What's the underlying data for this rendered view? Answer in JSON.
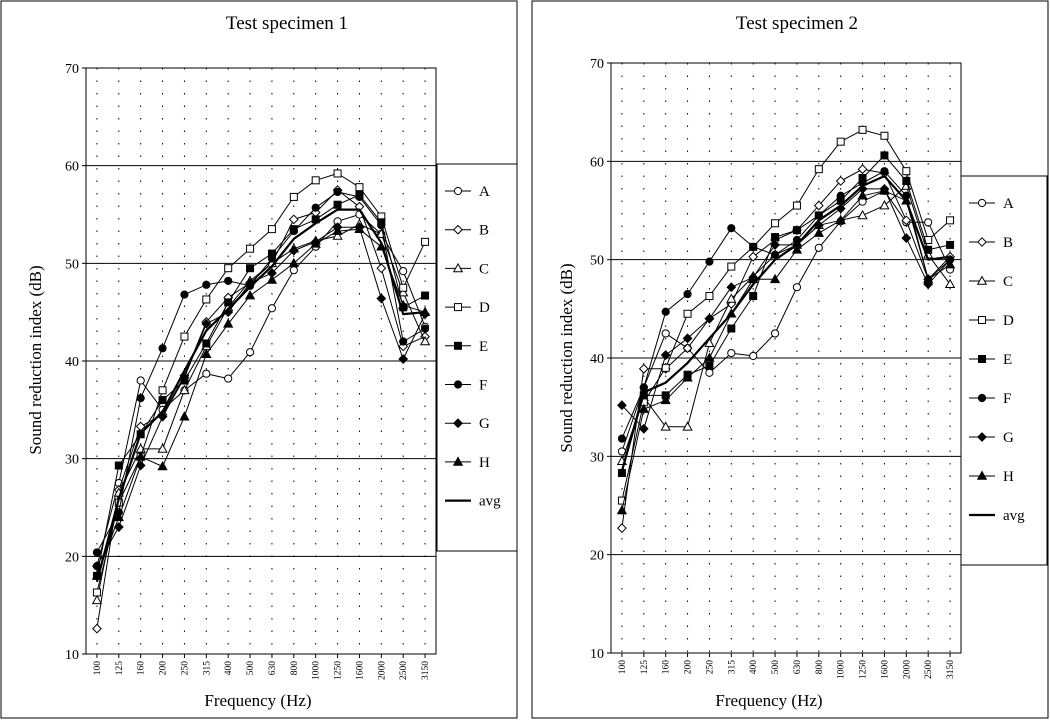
{
  "charts": [
    {
      "type": "line",
      "title": "Test specimen 1",
      "xlabel": "Frequency (Hz)",
      "ylabel": "Sound reduction index (dB)",
      "ylim": [
        10,
        70
      ],
      "yticks": [
        10,
        20,
        30,
        40,
        50,
        60,
        70
      ],
      "grid": "horizontal solid every 10 dB, vertical dotted at each band",
      "legend_position": "right",
      "categories": [
        "100",
        "125",
        "160",
        "200",
        "250",
        "315",
        "400",
        "500",
        "630",
        "800",
        "1000",
        "1250",
        "1600",
        "2000",
        "2500",
        "3150"
      ],
      "series": [
        {
          "name": "A",
          "marker": "circle-open",
          "values": [
            19.0,
            27.5,
            38.0,
            35.0,
            37.0,
            38.7,
            38.2,
            40.9,
            45.4,
            49.3,
            51.7,
            54.3,
            55.0,
            53.0,
            49.2,
            43.5
          ]
        },
        {
          "name": "B",
          "marker": "diamond-open",
          "values": [
            12.6,
            26.8,
            33.3,
            34.5,
            38.5,
            44.0,
            46.5,
            48.0,
            50.0,
            54.5,
            55.2,
            57.5,
            55.8,
            49.5,
            41.5,
            42.5
          ]
        },
        {
          "name": "C",
          "marker": "triangle-open",
          "values": [
            15.5,
            26.5,
            31.0,
            31.0,
            37.0,
            41.5,
            45.5,
            48.2,
            50.0,
            51.5,
            52.3,
            52.8,
            54.0,
            53.0,
            47.0,
            42.0
          ]
        },
        {
          "name": "D",
          "marker": "square-open",
          "values": [
            16.3,
            25.5,
            30.2,
            37.0,
            42.5,
            46.3,
            49.5,
            51.5,
            53.5,
            56.8,
            58.5,
            59.2,
            57.8,
            54.8,
            47.5,
            52.2
          ]
        },
        {
          "name": "E",
          "marker": "square-filled",
          "values": [
            18.0,
            29.3,
            32.5,
            36.0,
            38.0,
            41.8,
            46.0,
            49.5,
            51.0,
            53.5,
            54.5,
            56.0,
            57.0,
            54.2,
            45.5,
            46.7
          ]
        },
        {
          "name": "F",
          "marker": "circle-filled",
          "values": [
            20.4,
            24.5,
            36.2,
            41.3,
            46.8,
            47.8,
            48.2,
            47.7,
            50.5,
            53.3,
            55.7,
            57.3,
            56.8,
            53.9,
            42.0,
            43.3
          ]
        },
        {
          "name": "G",
          "marker": "diamond-filled",
          "values": [
            19.0,
            23.0,
            29.3,
            34.3,
            38.3,
            43.8,
            45.0,
            48.0,
            49.0,
            51.3,
            52.2,
            53.7,
            53.7,
            46.4,
            40.2,
            44.8
          ]
        },
        {
          "name": "H",
          "marker": "triangle-filled",
          "values": [
            18.0,
            24.0,
            30.2,
            29.2,
            34.3,
            40.7,
            43.8,
            46.7,
            48.3,
            50.0,
            52.0,
            53.3,
            53.5,
            51.7,
            45.7,
            45.0
          ]
        },
        {
          "name": "avg",
          "marker": "none",
          "values": [
            17.4,
            25.9,
            32.6,
            34.8,
            39.0,
            43.1,
            45.3,
            47.6,
            49.7,
            52.5,
            54.1,
            55.5,
            55.5,
            52.1,
            44.8,
            45.0
          ]
        }
      ]
    },
    {
      "type": "line",
      "title": "Test specimen 2",
      "xlabel": "Frequency (Hz)",
      "ylabel": "Sound reduction index (dB)",
      "ylim": [
        10,
        70
      ],
      "yticks": [
        10,
        20,
        30,
        40,
        50,
        60,
        70
      ],
      "grid": "horizontal solid every 10 dB, vertical dotted at each band",
      "legend_position": "right",
      "categories": [
        "100",
        "125",
        "160",
        "200",
        "250",
        "315",
        "400",
        "500",
        "630",
        "800",
        "1000",
        "1250",
        "1600",
        "2000",
        "2500",
        "3150"
      ],
      "series": [
        {
          "name": "A",
          "marker": "circle-open",
          "values": [
            30.5,
            37.0,
            42.5,
            41.0,
            38.5,
            40.5,
            40.2,
            42.5,
            47.2,
            51.2,
            53.9,
            55.9,
            57.0,
            53.8,
            53.8,
            49.0
          ]
        },
        {
          "name": "B",
          "marker": "diamond-open",
          "values": [
            22.7,
            38.9,
            38.9,
            41.0,
            44.0,
            45.5,
            50.3,
            52.0,
            53.0,
            55.5,
            58.0,
            59.2,
            58.8,
            54.0,
            48.0,
            50.3
          ]
        },
        {
          "name": "C",
          "marker": "triangle-open",
          "values": [
            29.5,
            36.0,
            33.0,
            33.0,
            41.5,
            46.0,
            48.3,
            50.5,
            51.5,
            53.5,
            54.0,
            54.5,
            55.5,
            57.5,
            50.5,
            47.5
          ]
        },
        {
          "name": "D",
          "marker": "square-open",
          "values": [
            25.5,
            35.5,
            39.0,
            44.5,
            46.3,
            49.3,
            51.3,
            53.7,
            55.5,
            59.2,
            62.0,
            63.2,
            62.6,
            59.0,
            52.0,
            54.0
          ]
        },
        {
          "name": "E",
          "marker": "square-filled",
          "values": [
            28.3,
            36.2,
            36.2,
            38.3,
            39.2,
            43.0,
            46.3,
            52.3,
            53.0,
            54.5,
            56.0,
            58.3,
            60.6,
            58.0,
            51.0,
            51.5
          ]
        },
        {
          "name": "F",
          "marker": "circle-filled",
          "values": [
            31.8,
            37.0,
            44.7,
            46.5,
            49.8,
            53.2,
            51.3,
            50.5,
            52.0,
            54.5,
            56.5,
            57.8,
            59.0,
            56.5,
            48.0,
            50.0
          ]
        },
        {
          "name": "G",
          "marker": "diamond-filled",
          "values": [
            35.2,
            32.8,
            40.3,
            42.0,
            44.0,
            47.2,
            48.2,
            51.5,
            51.5,
            53.5,
            55.2,
            57.2,
            57.2,
            52.2,
            47.5,
            50.0
          ]
        },
        {
          "name": "H",
          "marker": "triangle-filled",
          "values": [
            24.5,
            34.8,
            35.7,
            38.0,
            40.0,
            44.5,
            48.0,
            48.0,
            51.0,
            52.7,
            54.0,
            56.5,
            57.0,
            56.0,
            48.0,
            49.5
          ]
        },
        {
          "name": "avg",
          "marker": "none",
          "values": [
            28.5,
            36.5,
            37.5,
            39.5,
            42.0,
            44.5,
            47.5,
            50.0,
            51.5,
            54.0,
            55.5,
            57.5,
            58.5,
            56.0,
            50.0,
            50.3
          ]
        }
      ]
    }
  ]
}
